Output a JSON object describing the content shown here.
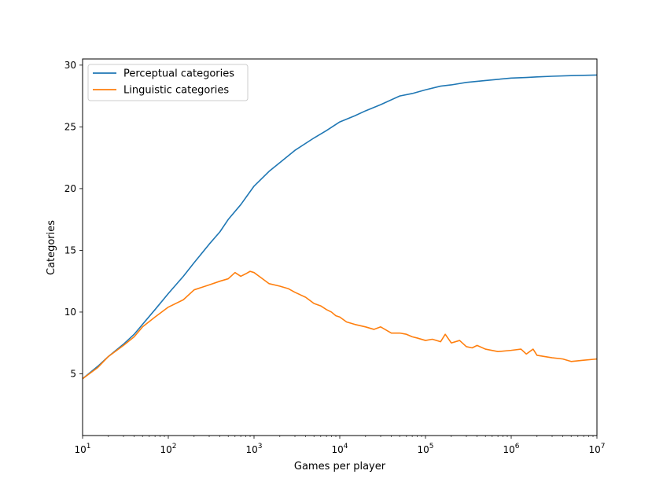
{
  "chart_data": {
    "type": "line",
    "xscale": "log",
    "xlim": [
      10,
      10000000
    ],
    "ylim": [
      0,
      30.5
    ],
    "xlabel": "Games per player",
    "ylabel": "Categories",
    "grid": false,
    "legend_position": "top-left",
    "xticks": [
      {
        "value": 10,
        "base": "10",
        "exp": "1"
      },
      {
        "value": 100,
        "base": "10",
        "exp": "2"
      },
      {
        "value": 1000,
        "base": "10",
        "exp": "3"
      },
      {
        "value": 10000,
        "base": "10",
        "exp": "4"
      },
      {
        "value": 100000,
        "base": "10",
        "exp": "5"
      },
      {
        "value": 1000000,
        "base": "10",
        "exp": "6"
      },
      {
        "value": 10000000,
        "base": "10",
        "exp": "7"
      }
    ],
    "yticks": [
      5,
      10,
      15,
      20,
      25,
      30
    ],
    "series": [
      {
        "name": "Perceptual categories",
        "color": "#1f77b4",
        "x": [
          10,
          15,
          20,
          30,
          40,
          50,
          70,
          100,
          150,
          200,
          300,
          400,
          500,
          700,
          1000,
          1500,
          2000,
          3000,
          5000,
          7000,
          10000,
          15000,
          20000,
          30000,
          50000,
          70000,
          100000,
          150000,
          200000,
          300000,
          500000,
          700000,
          1000000,
          1500000,
          2000000,
          3000000,
          5000000,
          10000000
        ],
        "y": [
          4.6,
          5.6,
          6.4,
          7.4,
          8.2,
          9.0,
          10.2,
          11.5,
          12.9,
          14.0,
          15.5,
          16.5,
          17.5,
          18.7,
          20.2,
          21.4,
          22.1,
          23.1,
          24.1,
          24.7,
          25.4,
          25.9,
          26.3,
          26.8,
          27.5,
          27.7,
          28.0,
          28.3,
          28.4,
          28.6,
          28.75,
          28.85,
          28.95,
          29.0,
          29.05,
          29.1,
          29.15,
          29.2
        ]
      },
      {
        "name": "Linguistic categories",
        "color": "#ff7f0e",
        "x": [
          10,
          15,
          20,
          30,
          40,
          50,
          70,
          100,
          150,
          200,
          300,
          400,
          500,
          600,
          700,
          800,
          900,
          1000,
          1200,
          1500,
          2000,
          2500,
          3000,
          4000,
          5000,
          6000,
          7000,
          8000,
          9000,
          10000,
          12000,
          15000,
          20000,
          25000,
          30000,
          40000,
          50000,
          60000,
          70000,
          80000,
          100000,
          120000,
          150000,
          170000,
          200000,
          250000,
          300000,
          350000,
          400000,
          500000,
          700000,
          1000000,
          1300000,
          1500000,
          1800000,
          2000000,
          3000000,
          4000000,
          5000000,
          7000000,
          10000000
        ],
        "y": [
          4.6,
          5.5,
          6.4,
          7.3,
          8.0,
          8.8,
          9.6,
          10.4,
          11.0,
          11.8,
          12.2,
          12.5,
          12.7,
          13.2,
          12.9,
          13.1,
          13.3,
          13.2,
          12.8,
          12.3,
          12.1,
          11.9,
          11.6,
          11.2,
          10.7,
          10.5,
          10.2,
          10.0,
          9.7,
          9.6,
          9.2,
          9.0,
          8.8,
          8.6,
          8.8,
          8.3,
          8.3,
          8.2,
          8.0,
          7.9,
          7.7,
          7.8,
          7.6,
          8.2,
          7.5,
          7.7,
          7.2,
          7.1,
          7.3,
          7.0,
          6.8,
          6.9,
          7.0,
          6.6,
          7.0,
          6.5,
          6.3,
          6.2,
          6.0,
          6.1,
          6.2
        ]
      }
    ]
  }
}
